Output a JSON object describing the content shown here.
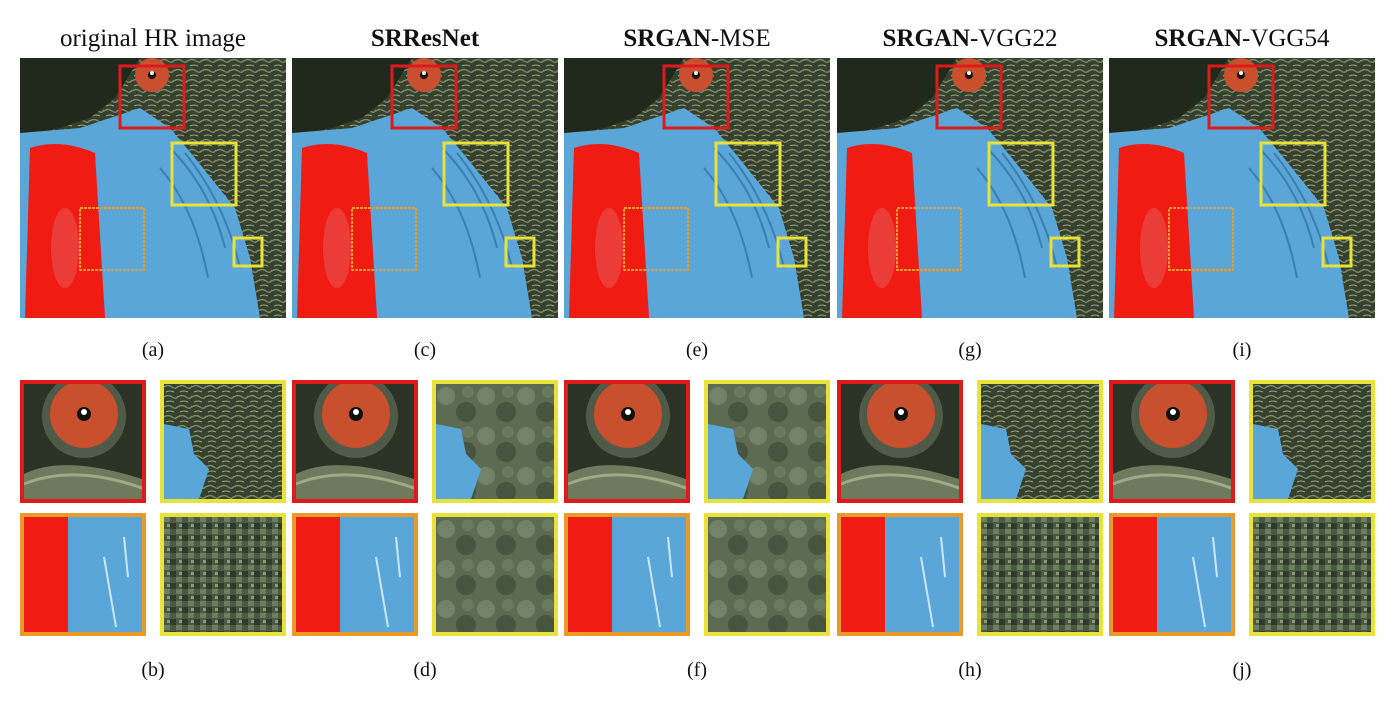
{
  "figure": {
    "columns": [
      {
        "title_bold": "",
        "title_rest": "original HR image",
        "cap_top": "(a)",
        "cap_bot": "(b)"
      },
      {
        "title_bold": "SRResNet",
        "title_rest": "",
        "cap_top": "(c)",
        "cap_bot": "(d)"
      },
      {
        "title_bold": "SRGAN",
        "title_rest": "-MSE",
        "cap_top": "(e)",
        "cap_bot": "(f)"
      },
      {
        "title_bold": "SRGAN",
        "title_rest": "-VGG22",
        "cap_top": "(g)",
        "cap_bot": "(h)"
      },
      {
        "title_bold": "SRGAN",
        "title_rest": "-VGG54",
        "cap_top": "(i)",
        "cap_bot": "(j)"
      }
    ],
    "colors": {
      "red_box": "#e01a1a",
      "yellow_box": "#e8e23a",
      "orange_box": "#e89a2a",
      "fur_dark": "#2c3a2a",
      "face_blue": "#5aa6d8",
      "nose_red": "#f01c14",
      "eye_orange": "#c9502e"
    }
  }
}
